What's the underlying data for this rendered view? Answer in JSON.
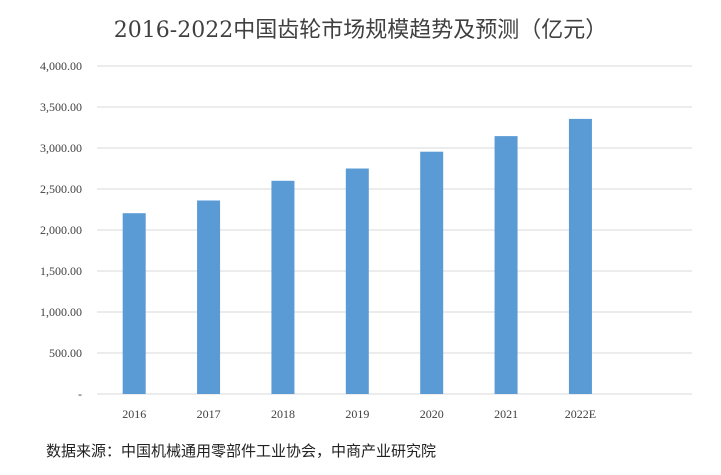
{
  "chart_data": {
    "type": "bar",
    "title": "2016-2022中国齿轮市场规模趋势及预测（亿元）",
    "categories": [
      "2016",
      "2017",
      "2018",
      "2019",
      "2020",
      "2021",
      "2022E"
    ],
    "series": [
      {
        "values": [
          2205,
          2360,
          2600,
          2750,
          2955,
          3145,
          3355
        ]
      }
    ],
    "ylim": [
      0,
      4000
    ],
    "yticks": [
      {
        "value": 0,
        "label": "-"
      },
      {
        "value": 500,
        "label": "500.00"
      },
      {
        "value": 1000,
        "label": "1,000.00"
      },
      {
        "value": 1500,
        "label": "1,500.00"
      },
      {
        "value": 2000,
        "label": "2,000.00"
      },
      {
        "value": 2500,
        "label": "2,500.00"
      },
      {
        "value": 3000,
        "label": "3,000.00"
      },
      {
        "value": 3500,
        "label": "3,500.00"
      },
      {
        "value": 4000,
        "label": "4,000.00"
      }
    ],
    "xlabel": "",
    "ylabel": "",
    "grid": true,
    "bar_color": "#5b9bd5"
  },
  "source": "数据来源：中国机械通用零部件工业协会，中商产业研究院"
}
